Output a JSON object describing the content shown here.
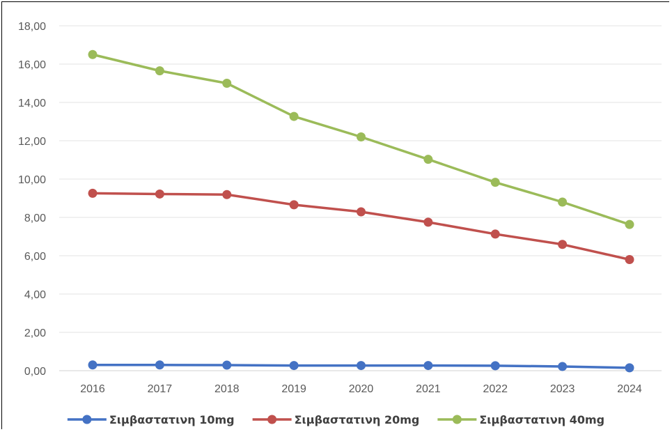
{
  "chart_data": {
    "type": "line",
    "title": "",
    "xlabel": "",
    "ylabel": "",
    "categories": [
      "2016",
      "2017",
      "2018",
      "2019",
      "2020",
      "2021",
      "2022",
      "2023",
      "2024"
    ],
    "ylim": [
      0,
      18
    ],
    "ytick_step": 2,
    "ytick_labels": [
      "0,00",
      "2,00",
      "4,00",
      "6,00",
      "8,00",
      "10,00",
      "12,00",
      "14,00",
      "16,00",
      "18,00"
    ],
    "grid": true,
    "legend_position": "bottom",
    "series": [
      {
        "name": "Σιμβαστατινη 10mg",
        "color": "#4472C4",
        "values": [
          0.3,
          0.3,
          0.29,
          0.27,
          0.27,
          0.27,
          0.26,
          0.22,
          0.15
        ]
      },
      {
        "name": "Σιμβαστατινη 20mg",
        "color": "#C0504D",
        "values": [
          9.26,
          9.22,
          9.19,
          8.66,
          8.29,
          7.75,
          7.13,
          6.59,
          5.8
        ]
      },
      {
        "name": "Σιμβαστατινη 40mg",
        "color": "#9BBB59",
        "values": [
          16.5,
          15.65,
          15.0,
          13.27,
          12.2,
          11.03,
          9.83,
          8.8,
          7.63
        ]
      }
    ]
  }
}
